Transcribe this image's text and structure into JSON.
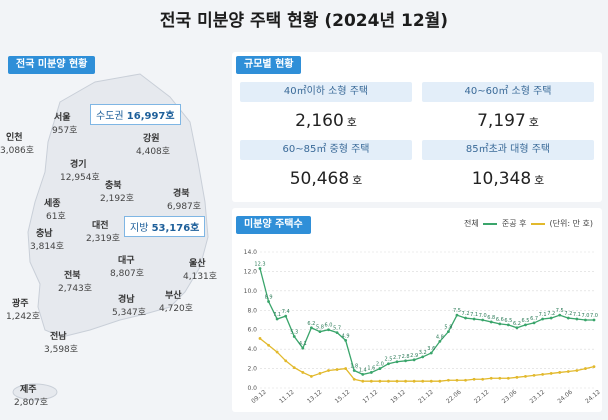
{
  "title": "전국 미분양 주택 현황 (2024년 12월)",
  "map_panel": {
    "tag": "전국 미분양 현황",
    "capital_area": {
      "label": "수도권",
      "value": "16,997호"
    },
    "provinces_area": {
      "label": "지방",
      "value": "53,176호"
    },
    "regions": [
      {
        "name": "서울",
        "value": "957호"
      },
      {
        "name": "인천",
        "value": "3,086호"
      },
      {
        "name": "강원",
        "value": "4,408호"
      },
      {
        "name": "경기",
        "value": "12,954호"
      },
      {
        "name": "충북",
        "value": "2,192호"
      },
      {
        "name": "경북",
        "value": "6,987호"
      },
      {
        "name": "세종",
        "value": "61호"
      },
      {
        "name": "대전",
        "value": "2,319호"
      },
      {
        "name": "충남",
        "value": "3,814호"
      },
      {
        "name": "대구",
        "value": "8,807호"
      },
      {
        "name": "울산",
        "value": "4,131호"
      },
      {
        "name": "전북",
        "value": "2,743호"
      },
      {
        "name": "경남",
        "value": "5,347호"
      },
      {
        "name": "부산",
        "value": "4,720호"
      },
      {
        "name": "광주",
        "value": "1,242호"
      },
      {
        "name": "전남",
        "value": "3,598호"
      },
      {
        "name": "제주",
        "value": "2,807호"
      }
    ]
  },
  "size_panel": {
    "tag": "규모별 현황",
    "cells": [
      {
        "label": "40㎡이하 소형 주택",
        "value": "2,160",
        "unit": "호"
      },
      {
        "label": "40~60㎡ 소형 주택",
        "value": "7,197",
        "unit": "호"
      },
      {
        "label": "60~85㎡ 중형 주택",
        "value": "50,468",
        "unit": "호"
      },
      {
        "label": "85㎡초과 대형 주택",
        "value": "10,348",
        "unit": "호"
      }
    ]
  },
  "chart_panel": {
    "tag": "미분양 주택수",
    "legend": {
      "total": "전체",
      "completed": "준공 후",
      "unit": "(단위: 만 호)"
    },
    "colors": {
      "total": "#3aa56b",
      "completed": "#e2b92c",
      "grid": "#d9d9d9",
      "tag": "#2f8fd8"
    }
  },
  "chart_data": {
    "type": "line",
    "ylim": [
      0,
      14
    ],
    "yticks": [
      "0.0",
      "2.0",
      "4.0",
      "6.0",
      "8.0",
      "10.0",
      "12.0",
      "14.0"
    ],
    "xticks": [
      "09.12",
      "11.12",
      "13.12",
      "15.12",
      "17.12",
      "19.12",
      "21.12",
      "22.06",
      "22.12",
      "23.06",
      "23.12",
      "24.06",
      "24.12"
    ],
    "series": [
      {
        "name": "전체",
        "values": [
          12.3,
          8.9,
          7.1,
          7.4,
          5.3,
          4.1,
          6.2,
          5.8,
          6.0,
          5.7,
          4.9,
          1.8,
          1.4,
          1.6,
          2.0,
          2.5,
          2.7,
          2.8,
          2.9,
          3.2,
          3.6,
          4.8,
          5.8,
          7.5,
          7.2,
          7.1,
          7.0,
          6.8,
          6.6,
          6.5,
          6.2,
          6.5,
          6.7,
          7.1,
          7.2,
          7.5,
          7.2,
          7.1,
          7.0,
          7.0
        ]
      },
      {
        "name": "준공 후",
        "values": [
          5.1,
          4.4,
          3.7,
          2.8,
          2.1,
          1.6,
          1.2,
          1.5,
          1.8,
          1.9,
          2.0,
          0.9,
          0.7,
          0.7,
          0.7,
          0.7,
          0.7,
          0.7,
          0.7,
          0.7,
          0.7,
          0.7,
          0.8,
          0.8,
          0.8,
          0.9,
          0.9,
          1.0,
          1.0,
          1.0,
          1.1,
          1.2,
          1.3,
          1.4,
          1.5,
          1.6,
          1.7,
          1.8,
          2.0,
          2.2
        ]
      }
    ]
  }
}
